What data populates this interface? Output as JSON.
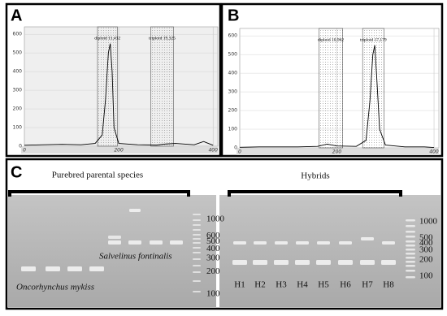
{
  "panel_labels": [
    "A",
    "B",
    "C"
  ],
  "chart_data": [
    {
      "type": "line",
      "x": [
        0,
        40,
        80,
        120,
        150,
        165,
        172,
        178,
        182,
        186,
        190,
        200,
        240,
        280,
        300,
        320,
        360,
        380,
        400
      ],
      "series": [
        {
          "color": "#000000",
          "values": [
            5,
            8,
            10,
            8,
            15,
            60,
            250,
            500,
            550,
            400,
            100,
            15,
            8,
            6,
            12,
            15,
            8,
            25,
            5
          ]
        }
      ],
      "xlim": [
        0,
        410
      ],
      "xticks": [
        0,
        200,
        400
      ],
      "ylim": [
        0,
        640
      ],
      "yticks": [
        0,
        100,
        200,
        300,
        400,
        500,
        600
      ],
      "grid": true,
      "gates": [
        {
          "label": "diploid 11,432",
          "range": [
            155,
            197
          ]
        },
        {
          "label": "triploid 19,325",
          "range": [
            268,
            316
          ]
        }
      ]
    },
    {
      "type": "line",
      "x": [
        0,
        40,
        80,
        120,
        160,
        180,
        200,
        240,
        260,
        268,
        274,
        278,
        282,
        288,
        300,
        340,
        380,
        400
      ],
      "series": [
        {
          "color": "#000000",
          "values": [
            3,
            5,
            5,
            5,
            8,
            20,
            10,
            8,
            40,
            250,
            500,
            550,
            380,
            100,
            15,
            5,
            5,
            2
          ]
        }
      ],
      "xlim": [
        0,
        410
      ],
      "xticks": [
        0,
        200,
        400
      ],
      "ylim": [
        0,
        640
      ],
      "yticks": [
        0,
        100,
        200,
        300,
        400,
        500,
        600
      ],
      "grid": true,
      "gates": [
        {
          "label": "diploid 10,962",
          "range": [
            163,
            212
          ]
        },
        {
          "label": "triploid 17,179",
          "range": [
            253,
            297
          ]
        }
      ]
    }
  ],
  "gel": {
    "left_title": "Purebred parental species",
    "right_title": "Hybrids",
    "species": [
      "Salvelinus fontinalis",
      "Oncorhynchus mykiss"
    ],
    "ladder_left": [
      1000,
      600,
      500,
      400,
      300,
      200,
      100
    ],
    "ladder_right": [
      1000,
      500,
      400,
      300,
      200,
      100
    ],
    "lanes": [
      "H1",
      "H2",
      "H3",
      "H4",
      "H5",
      "H6",
      "H7",
      "H8"
    ]
  }
}
